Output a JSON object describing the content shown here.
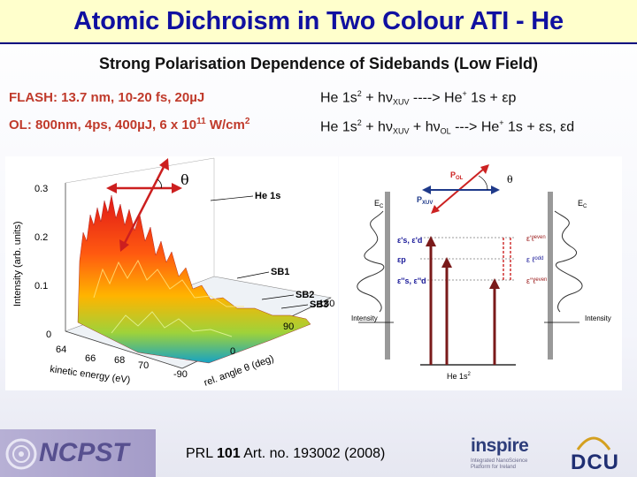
{
  "title": "Atomic Dichroism in Two Colour ATI - He",
  "subtitle": "Strong Polarisation Dependence of Sidebands (Low Field)",
  "params": {
    "flash": "FLASH: 13.7 nm, 10-20 fs, 20µJ",
    "ol_prefix": "OL: 800nm, 4ps, 400µJ, 6 x 10",
    "ol_exp": "11",
    "ol_unit": " W/cm",
    "ol_unit_exp": "2"
  },
  "processes": {
    "line1": {
      "a": "He 1s",
      "a_sup": "2",
      "b": " + hν",
      "b_sub": "XUV",
      "c": " ----> He",
      "c_sup": "+",
      "d": " 1s + εp"
    },
    "line2": {
      "a": "He 1s",
      "a_sup": "2",
      "b": " + hν",
      "b_sub": "XUV",
      "c": " + hν",
      "c_sub": "OL",
      "d": " ---> He",
      "d_sup": "+",
      "e": " 1s + εs, εd"
    }
  },
  "figure_left": {
    "theta": "θ",
    "y_ticks": [
      "0.3",
      "0.2",
      "0.1",
      "0"
    ],
    "y_label": "Intensity (arb. units)",
    "x_ticks": [
      "64",
      "66",
      "68",
      "70"
    ],
    "x_label": "kinetic energy (eV)",
    "angle_ticks": [
      "180",
      "90",
      "0",
      "-90"
    ],
    "angle_label": "rel. angle θ (deg)",
    "peaks": [
      "He 1s",
      "SB1",
      "SB2",
      "SB3"
    ]
  },
  "figure_right": {
    "pol": "P",
    "pol_sub": "OL",
    "pxuv": "P",
    "pxuv_sub": "XUV",
    "theta": "θ",
    "ec_left": "E",
    "ec_left_sub": "C",
    "ec_right": "E",
    "ec_right_sub": "C",
    "left_labels": [
      "ε's, ε'd",
      "εp",
      "ε''s, ε''d"
    ],
    "right_labels": [
      "ε'ℓ",
      "even",
      "ε ℓ",
      "odd",
      "ε''ℓ",
      "even"
    ],
    "intensity_left": "Intensity",
    "intensity_right": "Intensity",
    "ground": "He 1s",
    "ground_sup": "2"
  },
  "footer": {
    "ncpst": "NCPST",
    "ref_prefix": "PRL ",
    "ref_vol": "101",
    "ref_rest": " Art. no. 193002 (2008)",
    "inspire": "inspire",
    "inspire_sub": "Integrated NanoScience Platform for Ireland",
    "dcu": "DCU"
  }
}
